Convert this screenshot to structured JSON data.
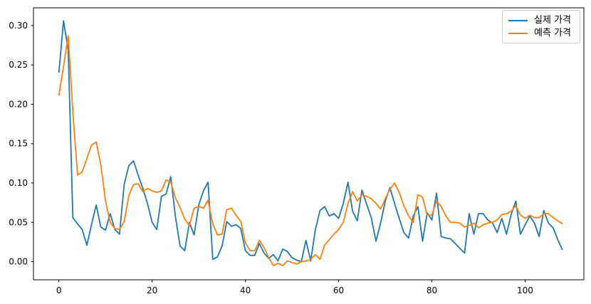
{
  "figure": {
    "kind": "matplotlib-line-figure",
    "background": "#ffffff",
    "axis_color": "#000000"
  },
  "chart_data": {
    "type": "line",
    "title": "",
    "xlabel": "",
    "ylabel": "",
    "grid": false,
    "legend_position": "upper right",
    "xlim": [
      -5.45,
      112.6
    ],
    "ylim": [
      -0.023,
      0.3225
    ],
    "xticks": {
      "values": [
        0,
        20,
        40,
        60,
        80,
        100
      ],
      "labels": [
        "0",
        "20",
        "40",
        "60",
        "80",
        "100"
      ]
    },
    "yticks": {
      "values": [
        0.0,
        0.05,
        0.1,
        0.15,
        0.2,
        0.25,
        0.3
      ],
      "labels": [
        "0.00",
        "0.05",
        "0.10",
        "0.15",
        "0.20",
        "0.25",
        "0.30"
      ]
    },
    "x": {
      "start": 0,
      "step": 1,
      "n_points": 109
    },
    "series": [
      {
        "name": "실제 가격",
        "color": "#1f77b4",
        "values": [
          0.24,
          0.306,
          0.269,
          0.056,
          0.048,
          0.041,
          0.021,
          0.047,
          0.072,
          0.044,
          0.04,
          0.061,
          0.041,
          0.035,
          0.098,
          0.122,
          0.128,
          0.11,
          0.093,
          0.074,
          0.05,
          0.041,
          0.083,
          0.086,
          0.108,
          0.057,
          0.02,
          0.014,
          0.05,
          0.034,
          0.072,
          0.09,
          0.101,
          0.003,
          0.006,
          0.02,
          0.051,
          0.045,
          0.047,
          0.042,
          0.014,
          0.008,
          0.008,
          0.023,
          0.011,
          0.004,
          0.009,
          0.001,
          0.016,
          0.013,
          0.005,
          0.002,
          0.0,
          0.027,
          0.001,
          0.04,
          0.065,
          0.07,
          0.058,
          0.061,
          0.055,
          0.074,
          0.101,
          0.064,
          0.052,
          0.091,
          0.073,
          0.056,
          0.026,
          0.049,
          0.077,
          0.094,
          0.074,
          0.055,
          0.037,
          0.03,
          0.058,
          0.07,
          0.026,
          0.062,
          0.053,
          0.087,
          0.032,
          0.03,
          0.029,
          0.023,
          0.017,
          0.011,
          0.061,
          0.035,
          0.061,
          0.061,
          0.053,
          0.049,
          0.037,
          0.055,
          0.035,
          0.06,
          0.077,
          0.035,
          0.047,
          0.058,
          0.049,
          0.032,
          0.065,
          0.049,
          0.043,
          0.028,
          0.015
        ]
      },
      {
        "name": "예측 가격",
        "color": "#ff7f0e",
        "values": [
          0.211,
          0.248,
          0.287,
          0.19,
          0.11,
          0.114,
          0.131,
          0.148,
          0.152,
          0.123,
          0.077,
          0.05,
          0.042,
          0.041,
          0.051,
          0.084,
          0.098,
          0.099,
          0.089,
          0.093,
          0.09,
          0.088,
          0.09,
          0.104,
          0.101,
          0.081,
          0.069,
          0.054,
          0.046,
          0.068,
          0.07,
          0.068,
          0.078,
          0.048,
          0.034,
          0.035,
          0.066,
          0.068,
          0.059,
          0.051,
          0.024,
          0.014,
          0.014,
          0.027,
          0.018,
          0.005,
          -0.005,
          -0.002,
          -0.005,
          0.001,
          -0.001,
          -0.003,
          0.0,
          0.001,
          0.003,
          0.009,
          0.003,
          0.021,
          0.028,
          0.035,
          0.041,
          0.05,
          0.074,
          0.089,
          0.077,
          0.085,
          0.083,
          0.08,
          0.074,
          0.067,
          0.08,
          0.092,
          0.1,
          0.088,
          0.071,
          0.058,
          0.05,
          0.085,
          0.082,
          0.059,
          0.059,
          0.077,
          0.07,
          0.058,
          0.05,
          0.05,
          0.049,
          0.044,
          0.046,
          0.049,
          0.043,
          0.047,
          0.049,
          0.05,
          0.053,
          0.06,
          0.061,
          0.064,
          0.071,
          0.059,
          0.055,
          0.059,
          0.056,
          0.056,
          0.061,
          0.061,
          0.056,
          0.052,
          0.048
        ]
      }
    ]
  },
  "legend": {
    "items": [
      {
        "label": "실제 가격"
      },
      {
        "label": "예측 가격"
      }
    ]
  }
}
